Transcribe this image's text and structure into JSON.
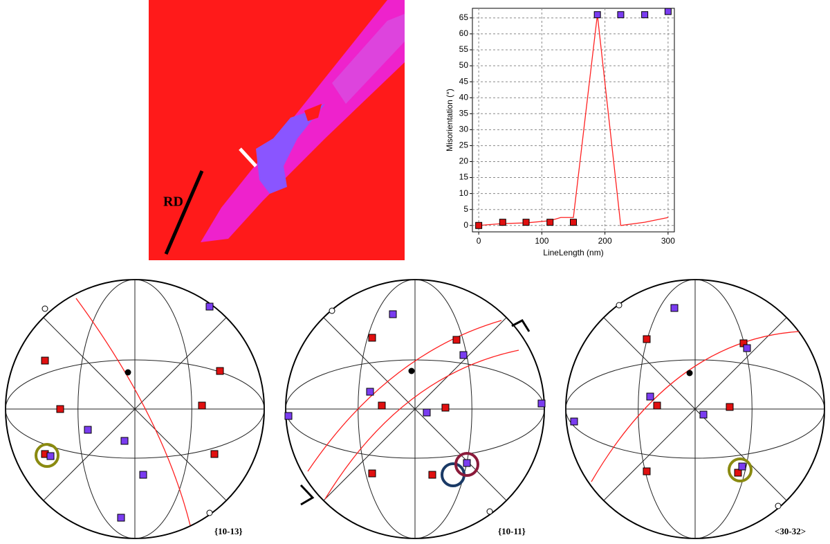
{
  "map": {
    "label": "RD"
  },
  "chart_data": {
    "type": "line",
    "y_label": "Misorientation (°)",
    "x_label": "LineLength (nm)",
    "xlim": [
      -10,
      310
    ],
    "ylim": [
      -2,
      68
    ],
    "xticks": [
      0,
      100,
      200,
      300
    ],
    "yticks": [
      0,
      5,
      10,
      15,
      20,
      25,
      30,
      35,
      40,
      45,
      50,
      55,
      60,
      65
    ],
    "grid": true,
    "series": [
      {
        "color": "#ff2020",
        "marker": "none",
        "x": [
          0,
          38,
          75,
          113,
          130,
          150,
          188,
          225,
          263,
          300
        ],
        "values": [
          0,
          0.6,
          0.8,
          1.5,
          2.5,
          2.5,
          66,
          0,
          1,
          2.5
        ]
      },
      {
        "color": "#e01010",
        "marker": "square",
        "line": false,
        "x": [
          0,
          38,
          75,
          113,
          150
        ],
        "values": [
          0,
          1,
          1,
          1,
          1
        ]
      },
      {
        "color": "#7a3cf0",
        "marker": "square",
        "line": false,
        "x": [
          188,
          225,
          263,
          300
        ],
        "values": [
          66,
          66,
          66,
          67
        ]
      }
    ]
  },
  "pole_figures": [
    {
      "label": "{10-13}"
    },
    {
      "label": "{10-11}"
    },
    {
      "label": "<30-32>"
    }
  ]
}
